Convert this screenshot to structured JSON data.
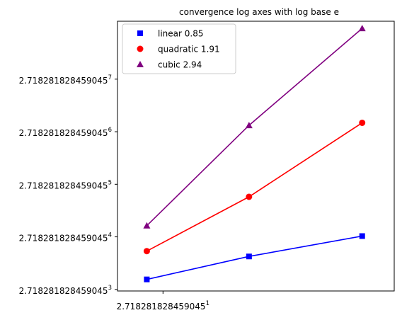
{
  "chart_data": {
    "type": "line",
    "title": "convergence log axes with log base e",
    "xlabel": "",
    "ylabel": "",
    "x_scale": "log, base e",
    "y_scale": "log, base e",
    "x_tick_labels": [
      {
        "base": "2.718281828459045",
        "exp": "1",
        "value": 2.718281828459045
      }
    ],
    "y_tick_labels": [
      {
        "base": "2.718281828459045",
        "exp": "3",
        "value": 20.0855
      },
      {
        "base": "2.718281828459045",
        "exp": "4",
        "value": 54.5982
      },
      {
        "base": "2.718281828459045",
        "exp": "5",
        "value": 148.413
      },
      {
        "base": "2.718281828459045",
        "exp": "6",
        "value": 403.429
      },
      {
        "base": "2.718281828459045",
        "exp": "7",
        "value": 1096.63
      }
    ],
    "xlim": [
      1.7,
      29.5
    ],
    "ylim": [
      19.5,
      3300
    ],
    "x": [
      2.3,
      6.6,
      21.2
    ],
    "series": [
      {
        "name": "linear 0.85",
        "color": "#0000ff",
        "marker": "square",
        "values": [
          24.3,
          37.6,
          55.4
        ]
      },
      {
        "name": "quadratic 1.91",
        "color": "#ff0000",
        "marker": "circle",
        "values": [
          41.6,
          117.0,
          478.0
        ]
      },
      {
        "name": "cubic 2.94",
        "color": "#800080",
        "marker": "triangle",
        "values": [
          67.5,
          455.0,
          2880.0
        ]
      }
    ],
    "legend": "top-left",
    "grid": false
  }
}
